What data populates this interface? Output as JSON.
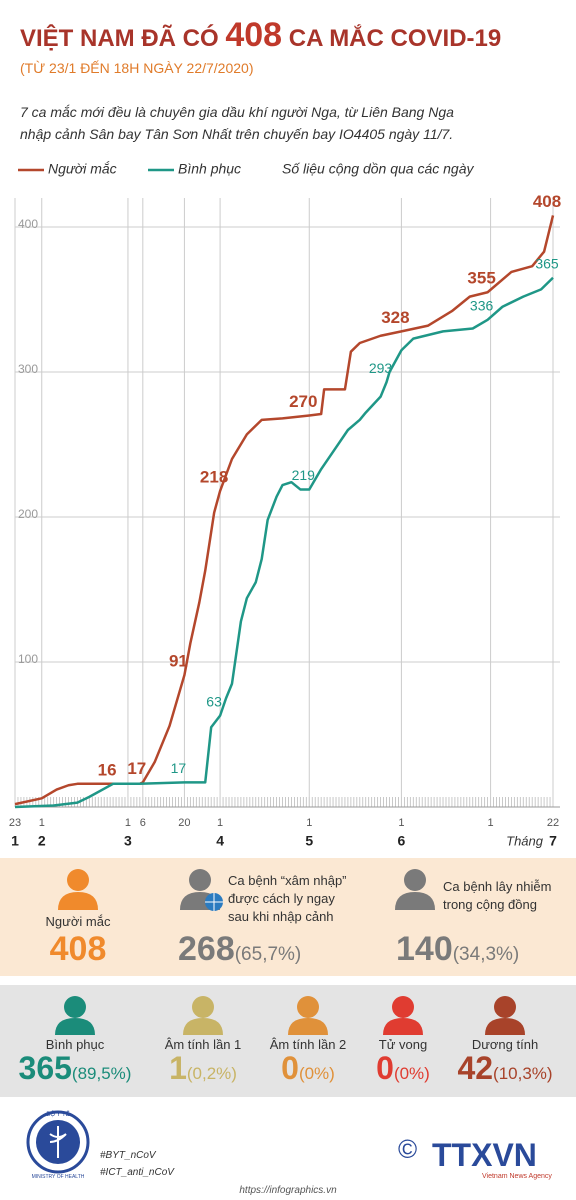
{
  "header": {
    "title_parts": [
      "VIỆT NAM ĐÃ CÓ",
      "408",
      "CA MẮC COVID-19"
    ],
    "subtitle": "(TỪ 23/1 ĐẾN 18H NGÀY 22/7/2020)",
    "description": [
      "7 ca mắc mới đều là chuyên gia dầu khí người Nga, từ Liên Bang Nga",
      "nhập cảnh Sân bay Tân Sơn Nhất trên chuyến bay IO4405 ngày 11/7."
    ],
    "note": "Số liệu cộng dồn qua các ngày"
  },
  "chart_data": {
    "type": "line",
    "xlim": [
      "23/1",
      "22/7"
    ],
    "ylim": [
      0,
      420
    ],
    "yticks": [
      100,
      200,
      300,
      400
    ],
    "grid": true,
    "xticks": [
      {
        "value": "23/1",
        "label": "23"
      },
      {
        "value": "1/2",
        "label": "1"
      },
      {
        "value": "1/3",
        "label": "1"
      },
      {
        "value": "6/3",
        "label": "6"
      },
      {
        "value": "20/3",
        "label": "20"
      },
      {
        "value": "1/4",
        "label": "1"
      },
      {
        "value": "1/5",
        "label": "1"
      },
      {
        "value": "1/6",
        "label": "1"
      },
      {
        "value": "1/7",
        "label": "1"
      },
      {
        "value": "22/7",
        "label": "22"
      }
    ],
    "months": [
      {
        "value": "23/1",
        "label": "1"
      },
      {
        "value": "1/2",
        "label": "2"
      },
      {
        "value": "1/3",
        "label": "3"
      },
      {
        "value": "1/4",
        "label": "4"
      },
      {
        "value": "1/5",
        "label": "5"
      },
      {
        "value": "1/6",
        "label": "6"
      },
      {
        "value": "22/7",
        "label": "7"
      }
    ],
    "month_word": "Tháng",
    "series": [
      {
        "name": "Người mắc",
        "color": "#b4472c",
        "x": [
          "23/1",
          "1/2",
          "6/2",
          "10/2",
          "13/2",
          "25/2",
          "5/3",
          "6/3",
          "10/3",
          "15/3",
          "20/3",
          "22/3",
          "25/3",
          "27/3",
          "30/3",
          "1/4",
          "5/4",
          "10/4",
          "15/4",
          "22/4",
          "1/5",
          "5/5",
          "6/5",
          "13/5",
          "15/5",
          "18/5",
          "25/5",
          "1/6",
          "10/6",
          "18/6",
          "24/6",
          "30/6",
          "8/7",
          "15/7",
          "19/7",
          "22/7"
        ],
        "values": [
          2,
          6,
          12,
          15,
          16,
          16,
          16,
          17,
          31,
          56,
          91,
          113,
          141,
          163,
          203,
          218,
          240,
          257,
          267,
          268,
          270,
          271,
          288,
          288,
          314,
          320,
          325,
          328,
          332,
          342,
          352,
          355,
          369,
          373,
          383,
          408
        ],
        "labels": [
          {
            "x": "25/2",
            "value": 16
          },
          {
            "x": "6/3",
            "value": 17
          },
          {
            "x": "20/3",
            "value": 91
          },
          {
            "x": "1/4",
            "value": 218
          },
          {
            "x": "1/5",
            "value": 270
          },
          {
            "x": "1/6",
            "value": 328
          },
          {
            "x": "30/6",
            "value": 355
          },
          {
            "x": "22/7",
            "value": 408
          }
        ]
      },
      {
        "name": "Bình phục",
        "color": "#1f9787",
        "x": [
          "23/1",
          "5/2",
          "13/2",
          "17/2",
          "25/2",
          "5/3",
          "20/3",
          "27/3",
          "29/3",
          "1/4",
          "3/4",
          "5/4",
          "8/4",
          "10/4",
          "13/4",
          "15/4",
          "17/4",
          "20/4",
          "22/4",
          "25/4",
          "28/4",
          "1/5",
          "5/5",
          "10/5",
          "14/5",
          "18/5",
          "20/5",
          "25/5",
          "27/5",
          "28/5",
          "1/6",
          "5/6",
          "15/6",
          "25/6",
          "30/6",
          "5/7",
          "12/7",
          "18/7",
          "22/7"
        ],
        "values": [
          0,
          1,
          3,
          7,
          16,
          16,
          17,
          17,
          55,
          63,
          75,
          85,
          128,
          144,
          155,
          171,
          198,
          214,
          222,
          224,
          219,
          219,
          233,
          248,
          260,
          267,
          272,
          283,
          293,
          300,
          315,
          323,
          328,
          330,
          336,
          345,
          352,
          357,
          365
        ],
        "labels": [
          {
            "x": "20/3",
            "value": 17
          },
          {
            "x": "1/4",
            "value": 63
          },
          {
            "x": "1/5",
            "value": 219
          },
          {
            "x": "27/5",
            "value": 293
          },
          {
            "x": "30/6",
            "value": 336
          },
          {
            "x": "22/7",
            "value": 365
          }
        ]
      }
    ]
  },
  "summary_top": [
    {
      "label": [
        "Người mắc"
      ],
      "value": 408
    },
    {
      "label": [
        "Ca bệnh “xâm nhập”",
        "được cách ly ngay",
        "sau khi nhập cảnh"
      ],
      "value": 268,
      "pct": "(65,7%)"
    },
    {
      "label": [
        "Ca bệnh lây nhiễm",
        "trong cộng đồng"
      ],
      "value": 140,
      "pct": "(34,3%)"
    }
  ],
  "summary_bottom": [
    {
      "label": "Bình phục",
      "value": 365,
      "pct": "(89,5%)"
    },
    {
      "label": "Âm tính lần 1",
      "value": 1,
      "pct": "(0,2%)"
    },
    {
      "label": "Âm tính lần 2",
      "value": 0,
      "pct": "(0%)"
    },
    {
      "label": "Tử vong",
      "value": 0,
      "pct": "(0%)"
    },
    {
      "label": "Dương tính",
      "value": 42,
      "pct": "(10,3%)"
    }
  ],
  "footer": {
    "logo_top": "BỘ Y TẾ",
    "logo_bottom": "MINISTRY OF HEALTH",
    "hashtags": [
      "#BYT_nCoV",
      "#ICT_anti_nCoV"
    ],
    "copyright": "©",
    "agency": "TTXVN",
    "agency_sub": "Vietnam News Agency",
    "url": "https://infographics.vn"
  }
}
